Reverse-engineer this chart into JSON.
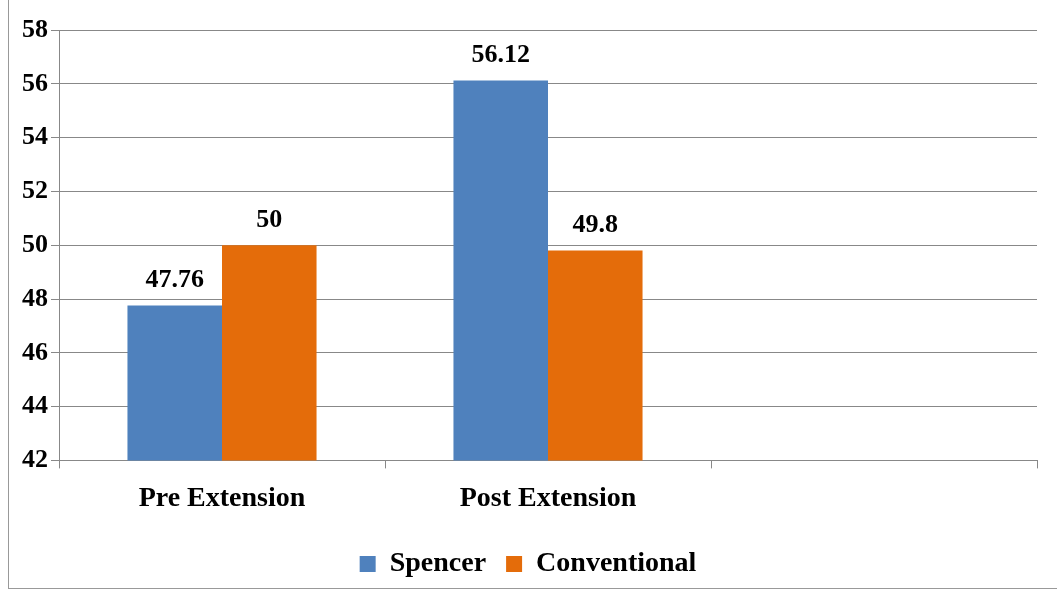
{
  "chart_data": {
    "type": "bar",
    "categories": [
      "Pre Extension",
      "Post Extension",
      null
    ],
    "series": [
      {
        "name": "Spencer",
        "color": "#4f81bd",
        "values": [
          47.76,
          56.12,
          null
        ]
      },
      {
        "name": "Conventional",
        "color": "#e46c0a",
        "values": [
          50,
          49.8,
          null
        ]
      }
    ],
    "ylim": [
      42,
      58
    ],
    "yticks": [
      42,
      44,
      46,
      48,
      50,
      52,
      54,
      56,
      58
    ],
    "grid": "y",
    "legend": "bottom",
    "data_labels": true
  }
}
